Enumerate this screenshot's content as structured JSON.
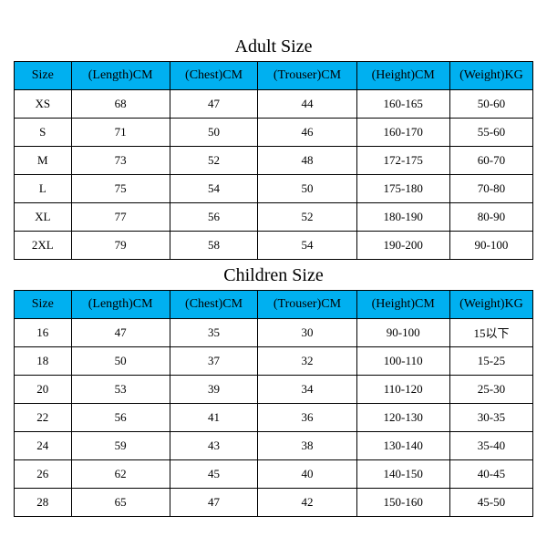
{
  "adult": {
    "title": "Adult Size",
    "columns": [
      "Size",
      "(Length)CM",
      "(Chest)CM",
      "(Trouser)CM",
      "(Height)CM",
      "(Weight)KG"
    ],
    "rows": [
      [
        "XS",
        "68",
        "47",
        "44",
        "160-165",
        "50-60"
      ],
      [
        "S",
        "71",
        "50",
        "46",
        "160-170",
        "55-60"
      ],
      [
        "M",
        "73",
        "52",
        "48",
        "172-175",
        "60-70"
      ],
      [
        "L",
        "75",
        "54",
        "50",
        "175-180",
        "70-80"
      ],
      [
        "XL",
        "77",
        "56",
        "52",
        "180-190",
        "80-90"
      ],
      [
        "2XL",
        "79",
        "58",
        "54",
        "190-200",
        "90-100"
      ]
    ],
    "header_bg": "#00b0f0",
    "border_color": "#000000",
    "title_fontsize": 20,
    "cell_fontsize": 13,
    "col_widths_pct": [
      11,
      19,
      17,
      19,
      18,
      16
    ]
  },
  "children": {
    "title": "Children Size",
    "columns": [
      "Size",
      "(Length)CM",
      "(Chest)CM",
      "(Trouser)CM",
      "(Height)CM",
      "(Weight)KG"
    ],
    "rows": [
      [
        "16",
        "47",
        "35",
        "30",
        "90-100",
        "15以下"
      ],
      [
        "18",
        "50",
        "37",
        "32",
        "100-110",
        "15-25"
      ],
      [
        "20",
        "53",
        "39",
        "34",
        "110-120",
        "25-30"
      ],
      [
        "22",
        "56",
        "41",
        "36",
        "120-130",
        "30-35"
      ],
      [
        "24",
        "59",
        "43",
        "38",
        "130-140",
        "35-40"
      ],
      [
        "26",
        "62",
        "45",
        "40",
        "140-150",
        "40-45"
      ],
      [
        "28",
        "65",
        "47",
        "42",
        "150-160",
        "45-50"
      ]
    ],
    "header_bg": "#00b0f0",
    "border_color": "#000000",
    "title_fontsize": 20,
    "cell_fontsize": 13,
    "col_widths_pct": [
      11,
      19,
      17,
      19,
      18,
      16
    ]
  }
}
